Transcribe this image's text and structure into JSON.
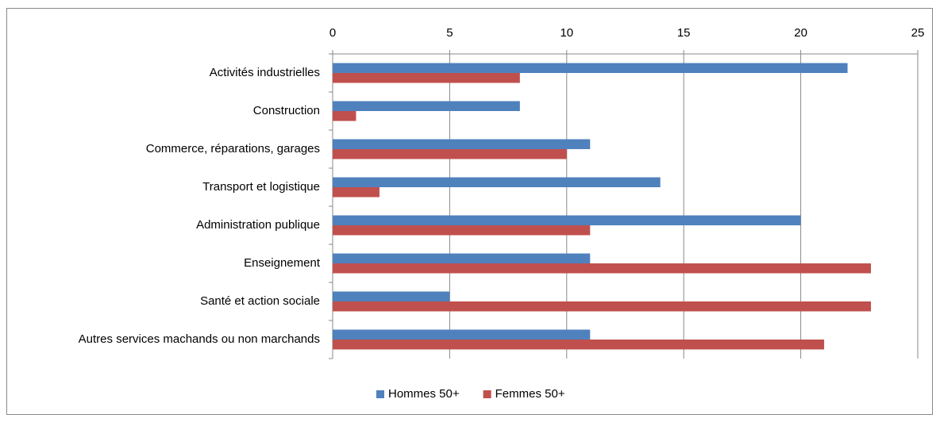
{
  "chart_data": {
    "type": "hbar",
    "categories": [
      "Activités industrielles",
      "Construction",
      "Commerce, réparations, garages",
      "Transport et logistique",
      "Administration publique",
      "Enseignement",
      "Santé et action sociale",
      "Autres services machands ou non marchands"
    ],
    "series": [
      {
        "name": "Hommes 50+",
        "color": "#4f81bd",
        "values": [
          22,
          8,
          11,
          14,
          20,
          11,
          5,
          11
        ]
      },
      {
        "name": "Femmes 50+",
        "color": "#c0504d",
        "values": [
          8,
          1,
          10,
          2,
          11,
          23,
          23,
          21
        ]
      }
    ],
    "xlim": [
      0,
      25
    ],
    "xticks": [
      0,
      5,
      10,
      15,
      20,
      25
    ],
    "grid": true,
    "legend": "bottom"
  }
}
